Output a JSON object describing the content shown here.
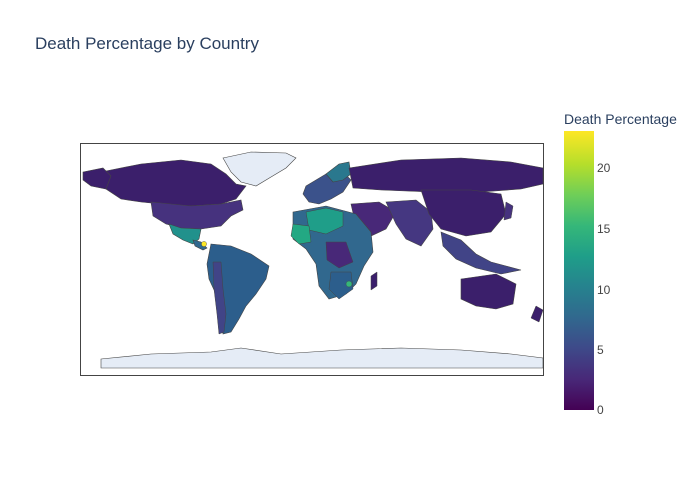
{
  "title": "Death Percentage by Country",
  "colorbar": {
    "title": "Death Percentage",
    "ticks": [
      "0",
      "5",
      "10",
      "15",
      "20"
    ],
    "range": [
      0,
      23
    ],
    "colorscale": "Viridis"
  },
  "colors": {
    "ocean": "#ffffff",
    "no_data_land": "#e5ecf6",
    "border": "#444444",
    "title_text": "#2a3f5f"
  }
}
